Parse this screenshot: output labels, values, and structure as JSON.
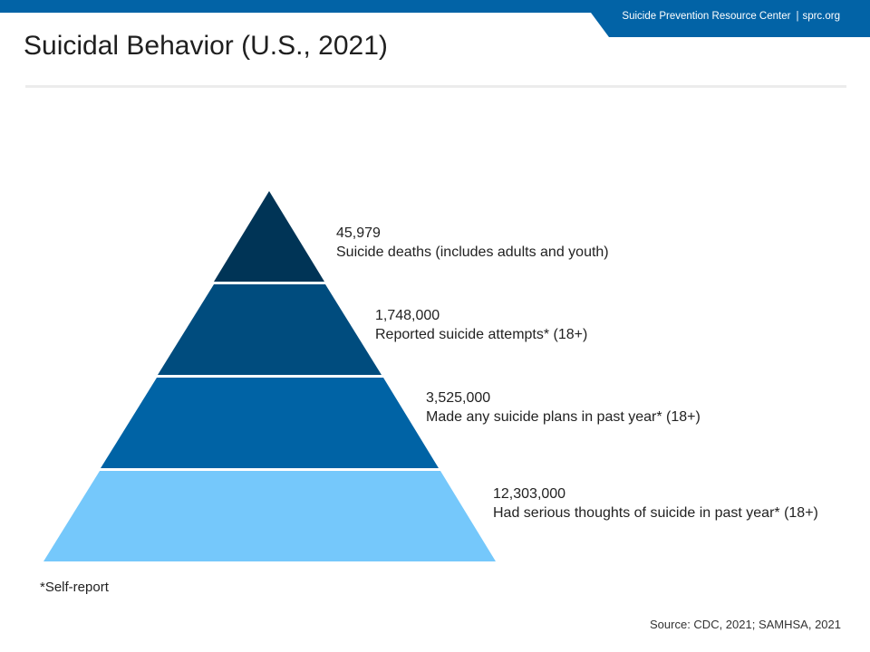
{
  "header": {
    "org_name": "Suicide Prevention Resource Center",
    "separator": "|",
    "site": "sprc.org",
    "brand_color": "#0263a6"
  },
  "page_title": "Suicidal Behavior (U.S., 2021)",
  "tiers": [
    {
      "value": "45,979",
      "description": "Suicide deaths (includes adults and youth)",
      "color": "#003456"
    },
    {
      "value": "1,748,000",
      "description": "Reported suicide attempts* (18+)",
      "color": "#004c7e"
    },
    {
      "value": "3,525,000",
      "description": "Made any suicide plans in past year* (18+)",
      "color": "#0063a5"
    },
    {
      "value": "12,303,000",
      "description": "Had serious thoughts of suicide in past year* (18+)",
      "color": "#75c8fb"
    }
  ],
  "footnote": "*Self-report",
  "source": "Source: CDC, 2021; SAMHSA, 2021"
}
